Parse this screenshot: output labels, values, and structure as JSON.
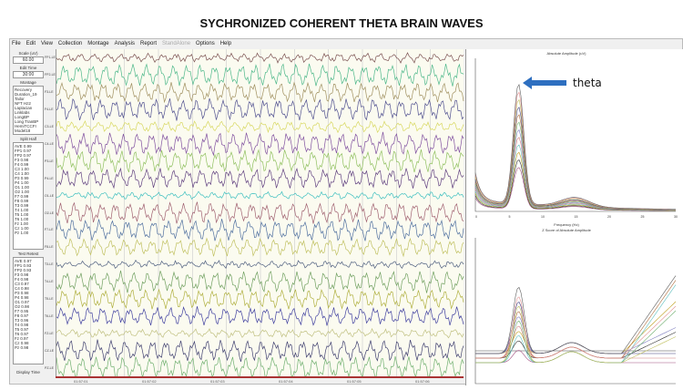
{
  "slide_title": "SYCHRONIZED COHERENT THETA BRAIN WAVES",
  "menu": [
    "File",
    "Edit",
    "View",
    "Collection",
    "Montage",
    "Analysis",
    "Report",
    "StandAlone",
    "Options",
    "Help"
  ],
  "menu_disabled": "StandAlone",
  "left_panel": {
    "scale_label": "Scale (uV)",
    "scale_value": "60.00",
    "edit_time_label": "Edit Time",
    "edit_time_value": "30:00",
    "montage_label": "Montage",
    "montages": [
      "Recovery",
      "Duration_19",
      "Tailor",
      "NFT Hz2",
      "Laplacian",
      "Linklabs",
      "LongBP",
      "Long TranBP",
      "HemiTCCFI",
      "Model18"
    ],
    "split_half_label": "Split Half",
    "split_half": [
      "AVE 0.99",
      "FP1 0.97",
      "FP2 0.97",
      "F3 0.98",
      "F4 0.99",
      "C3 1.00",
      "C4 1.00",
      "P3 0.99",
      "P4 1.00",
      "O1 1.00",
      "O2 1.00",
      "F7 0.99",
      "F8 0.99",
      "T3 0.99",
      "T4 1.00",
      "T5 1.00",
      "T6 1.00",
      "Fz 1.00",
      "Cz 1.00",
      "Pz 1.00"
    ],
    "test_retest_label": "Test Retest",
    "test_retest": [
      "AVE 0.97",
      "FP1 0.93",
      "FP2 0.93",
      "F3 0.98",
      "F4 0.98",
      "C3 0.97",
      "C4 0.98",
      "P3 0.98",
      "P4 0.98",
      "O1 0.97",
      "O2 0.98",
      "F7 0.95",
      "F8 0.97",
      "T3 0.96",
      "T4 0.98",
      "T5 0.97",
      "T6 0.97",
      "Fz 0.97",
      "Cz 0.98",
      "Pz 0.98"
    ],
    "display_time_label": "Display Time"
  },
  "channels": [
    "FP1-LE",
    "FP2-LE",
    "F3-LE",
    "F4-LE",
    "C3-LE",
    "C4-LE",
    "P3-LE",
    "P4-LE",
    "O1-LE",
    "O2-LE",
    "F7-LE",
    "F8-LE",
    "T3-LE",
    "T4-LE",
    "T5-LE",
    "T6-LE",
    "FZ-LE",
    "CZ-LE",
    "PZ-LE"
  ],
  "channel_colors": [
    "#7a5050",
    "#4db88a",
    "#a09060",
    "#505090",
    "#d8d860",
    "#8050a0",
    "#90c060",
    "#604080",
    "#40c0c0",
    "#a06070",
    "#5070a0",
    "#c0c060",
    "#506080",
    "#70a060",
    "#b0b040",
    "#4040a0",
    "#c0c080",
    "#404070",
    "#70b070"
  ],
  "time_ticks": [
    "01:57:01",
    "01:57:02",
    "01:57:03",
    "01:57:04",
    "01:57:05",
    "01:57:06"
  ],
  "spectrum_chart": {
    "title": "Absolute Amplitude (uV)",
    "xlabel": "Frequency (Hz)",
    "xticks": [
      "0",
      "5",
      "10",
      "15",
      "20",
      "25",
      "30"
    ]
  },
  "zscore_chart": {
    "title": "Z Score of Absolute Amplitude"
  },
  "annotation": {
    "label": "theta",
    "arrow_color": "#2e6fc0"
  }
}
